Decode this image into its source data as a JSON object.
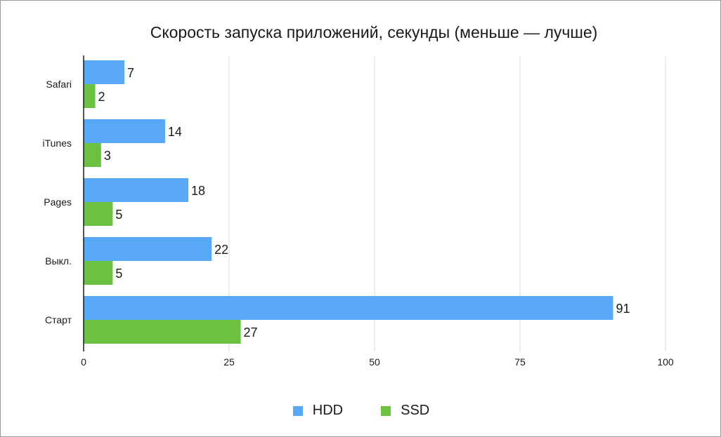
{
  "chart_data": {
    "type": "bar",
    "orientation": "horizontal",
    "title": "Скорость запуска приложений, секунды (меньше — лучше)",
    "categories": [
      "Safari",
      "iTunes",
      "Pages",
      "Выкл.",
      "Старт"
    ],
    "series": [
      {
        "name": "HDD",
        "values": [
          7,
          14,
          18,
          22,
          91
        ],
        "color": "#58a8f7"
      },
      {
        "name": "SSD",
        "values": [
          2,
          3,
          5,
          5,
          27
        ],
        "color": "#6cc140"
      }
    ],
    "xlim": [
      0,
      100
    ],
    "xticks": [
      0,
      25,
      50,
      75,
      100
    ],
    "grid": true,
    "legend_position": "bottom"
  }
}
